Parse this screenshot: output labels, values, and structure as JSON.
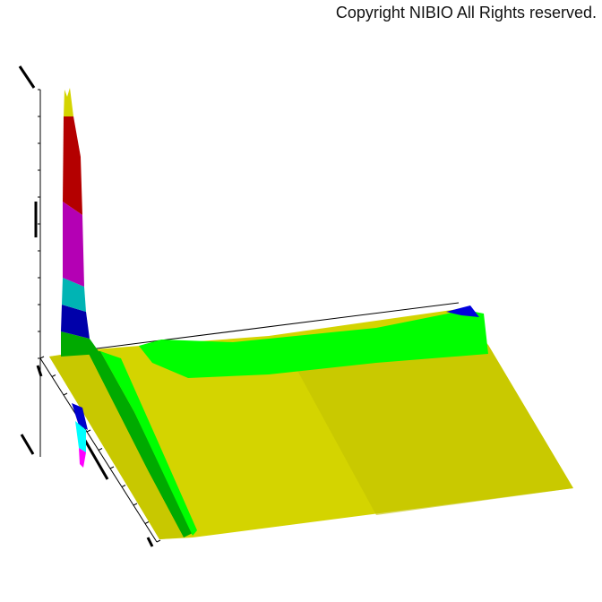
{
  "copyright": "Copyright NIBIO All Rights reserved.",
  "chart_data": {
    "type": "surface",
    "title": "",
    "projection": "3d",
    "axis_labels_legible": false,
    "colormap": [
      "#00aa00",
      "#0000aa",
      "#00b4b4",
      "#b400b4",
      "#b40000",
      "#d4d400"
    ],
    "surface_colors": {
      "base": "#d4d400",
      "ridge": "#00ff00",
      "peak_top": "#d4d400",
      "peak_red": "#b40000",
      "peak_magenta": "#b400b4",
      "peak_cyan": "#00b4b4",
      "peak_blue": "#0000aa",
      "peak_green": "#00aa00",
      "cap_blue": "#0000dd"
    }
  }
}
